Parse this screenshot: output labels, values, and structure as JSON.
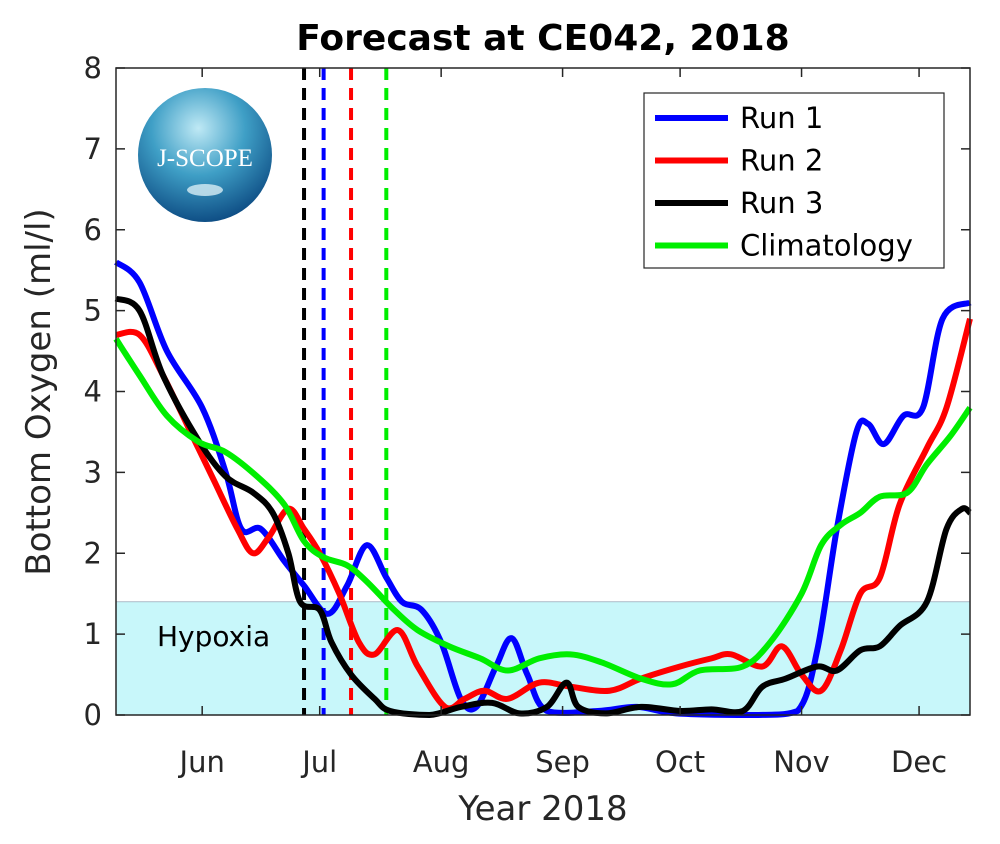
{
  "chart_data": {
    "type": "line",
    "title": "Forecast at CE042, 2018",
    "xlabel": "Year 2018",
    "ylabel": "Bottom Oxygen (ml/l)",
    "xlim": [
      "2018-05-10",
      "2018-12-14"
    ],
    "ylim": [
      0,
      8
    ],
    "yticks": [
      "0",
      "1",
      "2",
      "3",
      "4",
      "5",
      "6",
      "7",
      "8"
    ],
    "xticks": [
      {
        "date": "2018-06-01",
        "label": "Jun"
      },
      {
        "date": "2018-07-01",
        "label": "Jul"
      },
      {
        "date": "2018-08-01",
        "label": "Aug"
      },
      {
        "date": "2018-09-01",
        "label": "Sep"
      },
      {
        "date": "2018-10-01",
        "label": "Oct"
      },
      {
        "date": "2018-11-01",
        "label": "Nov"
      },
      {
        "date": "2018-12-01",
        "label": "Dec"
      }
    ],
    "grid": false,
    "legend_position": "top-right",
    "hypoxia": {
      "label": "Hypoxia",
      "threshold": 1.4,
      "color": "#c8f7fa"
    },
    "logo_text": "J-SCOPE",
    "vertical_markers": [
      {
        "date": "2018-06-27",
        "color": "#000000"
      },
      {
        "date": "2018-07-02",
        "color": "#0000ff"
      },
      {
        "date": "2018-07-09",
        "color": "#ff0000"
      },
      {
        "date": "2018-07-18",
        "color": "#00ee00"
      }
    ],
    "series": [
      {
        "name": "Run 1",
        "color": "#0000ff",
        "points": [
          [
            "2018-05-10",
            5.6
          ],
          [
            "2018-05-16",
            5.35
          ],
          [
            "2018-05-23",
            4.5
          ],
          [
            "2018-06-01",
            3.8
          ],
          [
            "2018-06-07",
            3.0
          ],
          [
            "2018-06-11",
            2.3
          ],
          [
            "2018-06-16",
            2.3
          ],
          [
            "2018-06-22",
            1.9
          ],
          [
            "2018-06-27",
            1.6
          ],
          [
            "2018-07-03",
            1.25
          ],
          [
            "2018-07-08",
            1.6
          ],
          [
            "2018-07-13",
            2.1
          ],
          [
            "2018-07-18",
            1.7
          ],
          [
            "2018-07-22",
            1.4
          ],
          [
            "2018-07-27",
            1.3
          ],
          [
            "2018-08-01",
            0.9
          ],
          [
            "2018-08-06",
            0.2
          ],
          [
            "2018-08-10",
            0.1
          ],
          [
            "2018-08-15",
            0.6
          ],
          [
            "2018-08-19",
            0.95
          ],
          [
            "2018-08-23",
            0.5
          ],
          [
            "2018-08-28",
            0.05
          ],
          [
            "2018-09-10",
            0.05
          ],
          [
            "2018-09-20",
            0.1
          ],
          [
            "2018-09-30",
            0.02
          ],
          [
            "2018-10-21",
            0.0
          ],
          [
            "2018-10-31",
            0.05
          ],
          [
            "2018-11-05",
            0.8
          ],
          [
            "2018-11-10",
            2.3
          ],
          [
            "2018-11-15",
            3.5
          ],
          [
            "2018-11-18",
            3.6
          ],
          [
            "2018-11-22",
            3.35
          ],
          [
            "2018-11-27",
            3.7
          ],
          [
            "2018-12-02",
            3.8
          ],
          [
            "2018-12-07",
            4.9
          ],
          [
            "2018-12-14",
            5.1
          ]
        ]
      },
      {
        "name": "Run 2",
        "color": "#ff0000",
        "points": [
          [
            "2018-05-10",
            4.7
          ],
          [
            "2018-05-16",
            4.7
          ],
          [
            "2018-05-22",
            4.2
          ],
          [
            "2018-05-31",
            3.3
          ],
          [
            "2018-06-04",
            2.9
          ],
          [
            "2018-06-10",
            2.3
          ],
          [
            "2018-06-14",
            2.0
          ],
          [
            "2018-06-18",
            2.2
          ],
          [
            "2018-06-23",
            2.55
          ],
          [
            "2018-06-27",
            2.3
          ],
          [
            "2018-07-01",
            2.0
          ],
          [
            "2018-07-06",
            1.5
          ],
          [
            "2018-07-11",
            0.9
          ],
          [
            "2018-07-15",
            0.75
          ],
          [
            "2018-07-21",
            1.05
          ],
          [
            "2018-07-26",
            0.6
          ],
          [
            "2018-08-02",
            0.1
          ],
          [
            "2018-08-07",
            0.2
          ],
          [
            "2018-08-12",
            0.3
          ],
          [
            "2018-08-18",
            0.2
          ],
          [
            "2018-08-26",
            0.4
          ],
          [
            "2018-09-03",
            0.35
          ],
          [
            "2018-09-13",
            0.3
          ],
          [
            "2018-09-21",
            0.45
          ],
          [
            "2018-10-01",
            0.6
          ],
          [
            "2018-10-09",
            0.7
          ],
          [
            "2018-10-14",
            0.75
          ],
          [
            "2018-10-22",
            0.6
          ],
          [
            "2018-10-27",
            0.85
          ],
          [
            "2018-11-01",
            0.5
          ],
          [
            "2018-11-06",
            0.3
          ],
          [
            "2018-11-11",
            0.8
          ],
          [
            "2018-11-16",
            1.5
          ],
          [
            "2018-11-21",
            1.7
          ],
          [
            "2018-11-26",
            2.6
          ],
          [
            "2018-12-03",
            3.3
          ],
          [
            "2018-12-08",
            3.8
          ],
          [
            "2018-12-14",
            4.9
          ]
        ]
      },
      {
        "name": "Run 3",
        "color": "#000000",
        "points": [
          [
            "2018-05-10",
            5.15
          ],
          [
            "2018-05-16",
            5.0
          ],
          [
            "2018-05-22",
            4.2
          ],
          [
            "2018-05-31",
            3.4
          ],
          [
            "2018-06-07",
            2.95
          ],
          [
            "2018-06-14",
            2.75
          ],
          [
            "2018-06-19",
            2.5
          ],
          [
            "2018-06-23",
            2.0
          ],
          [
            "2018-06-26",
            1.4
          ],
          [
            "2018-07-01",
            1.3
          ],
          [
            "2018-07-04",
            0.9
          ],
          [
            "2018-07-09",
            0.5
          ],
          [
            "2018-07-15",
            0.2
          ],
          [
            "2018-07-19",
            0.05
          ],
          [
            "2018-07-29",
            0.0
          ],
          [
            "2018-08-06",
            0.1
          ],
          [
            "2018-08-14",
            0.15
          ],
          [
            "2018-08-21",
            0.02
          ],
          [
            "2018-08-28",
            0.1
          ],
          [
            "2018-09-02",
            0.4
          ],
          [
            "2018-09-05",
            0.1
          ],
          [
            "2018-09-12",
            0.02
          ],
          [
            "2018-09-21",
            0.1
          ],
          [
            "2018-10-01",
            0.05
          ],
          [
            "2018-10-09",
            0.07
          ],
          [
            "2018-10-17",
            0.05
          ],
          [
            "2018-10-22",
            0.35
          ],
          [
            "2018-10-28",
            0.45
          ],
          [
            "2018-11-05",
            0.6
          ],
          [
            "2018-11-10",
            0.55
          ],
          [
            "2018-11-16",
            0.8
          ],
          [
            "2018-11-21",
            0.85
          ],
          [
            "2018-11-26",
            1.1
          ],
          [
            "2018-12-03",
            1.4
          ],
          [
            "2018-12-08",
            2.3
          ],
          [
            "2018-12-12",
            2.55
          ],
          [
            "2018-12-14",
            2.5
          ]
        ]
      },
      {
        "name": "Climatology",
        "color": "#00ee00",
        "points": [
          [
            "2018-05-10",
            4.65
          ],
          [
            "2018-05-16",
            4.2
          ],
          [
            "2018-05-23",
            3.7
          ],
          [
            "2018-05-31",
            3.38
          ],
          [
            "2018-06-07",
            3.25
          ],
          [
            "2018-06-15",
            2.95
          ],
          [
            "2018-06-22",
            2.6
          ],
          [
            "2018-06-27",
            2.15
          ],
          [
            "2018-07-02",
            1.95
          ],
          [
            "2018-07-08",
            1.85
          ],
          [
            "2018-07-13",
            1.65
          ],
          [
            "2018-07-20",
            1.3
          ],
          [
            "2018-07-26",
            1.05
          ],
          [
            "2018-08-03",
            0.85
          ],
          [
            "2018-08-11",
            0.7
          ],
          [
            "2018-08-18",
            0.55
          ],
          [
            "2018-08-26",
            0.7
          ],
          [
            "2018-09-03",
            0.75
          ],
          [
            "2018-09-11",
            0.65
          ],
          [
            "2018-09-21",
            0.45
          ],
          [
            "2018-09-29",
            0.38
          ],
          [
            "2018-10-06",
            0.55
          ],
          [
            "2018-10-17",
            0.6
          ],
          [
            "2018-10-24",
            0.9
          ],
          [
            "2018-11-01",
            1.5
          ],
          [
            "2018-11-06",
            2.1
          ],
          [
            "2018-11-11",
            2.35
          ],
          [
            "2018-11-16",
            2.5
          ],
          [
            "2018-11-21",
            2.7
          ],
          [
            "2018-11-28",
            2.75
          ],
          [
            "2018-12-03",
            3.1
          ],
          [
            "2018-12-09",
            3.45
          ],
          [
            "2018-12-14",
            3.8
          ]
        ]
      }
    ]
  }
}
